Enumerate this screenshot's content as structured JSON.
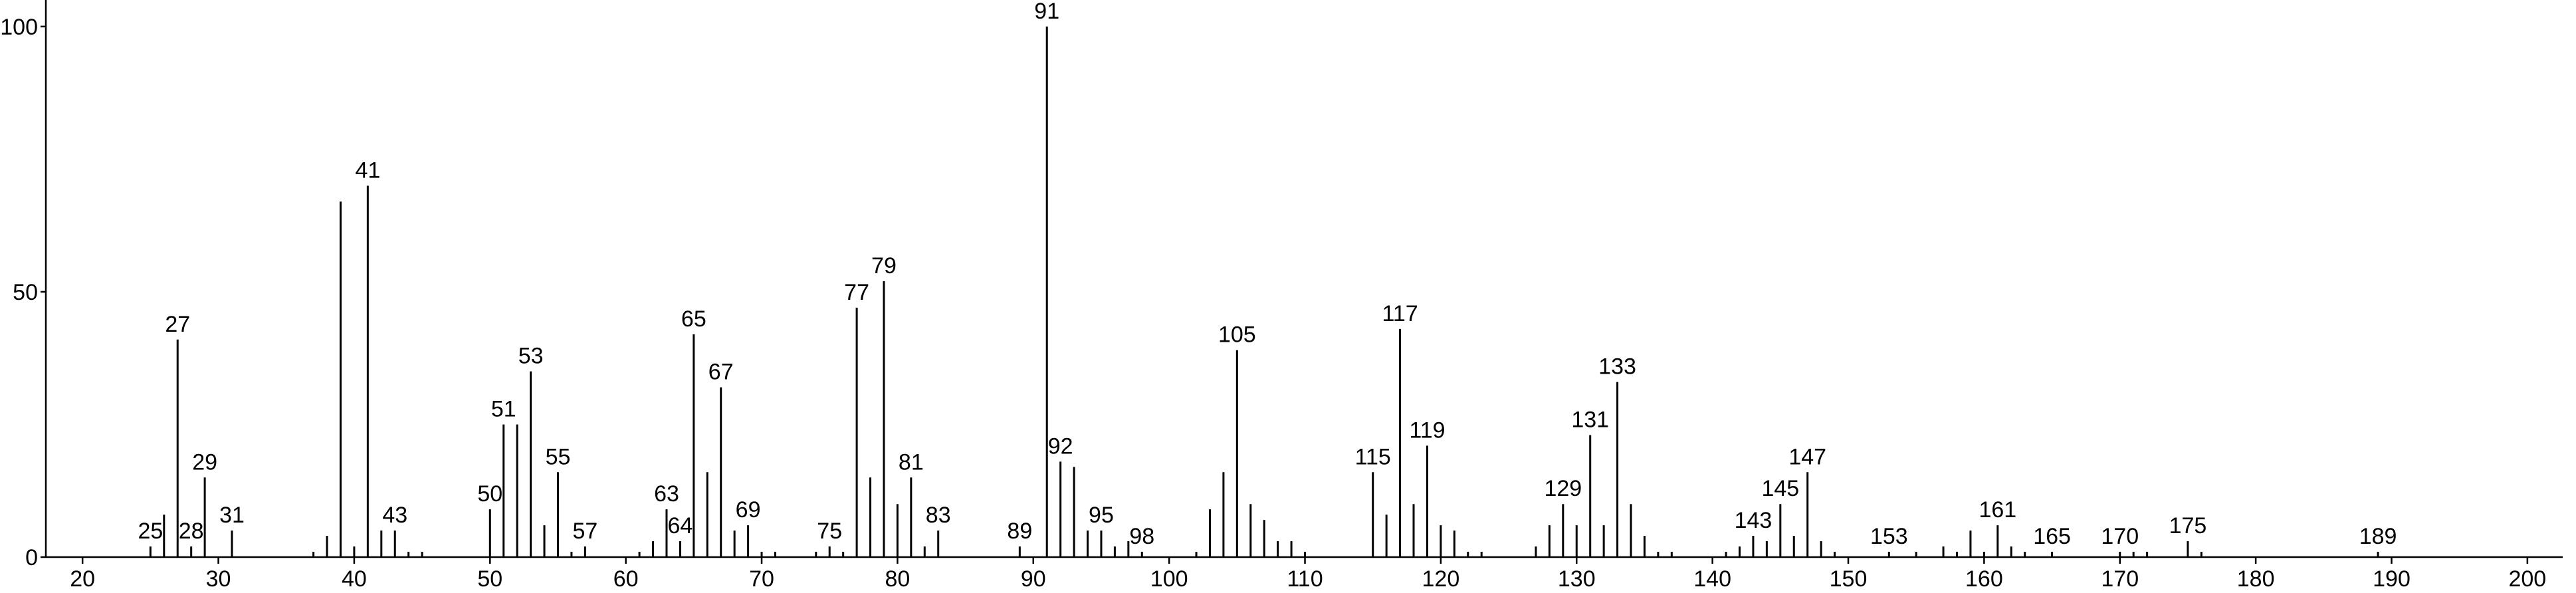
{
  "chart_data": {
    "type": "stick",
    "x": [
      25,
      26,
      27,
      28,
      29,
      31,
      37,
      38,
      39,
      40,
      41,
      42,
      43,
      44,
      45,
      50,
      51,
      52,
      53,
      54,
      55,
      56,
      57,
      61,
      62,
      63,
      64,
      65,
      66,
      67,
      68,
      69,
      70,
      71,
      74,
      75,
      76,
      77,
      78,
      79,
      80,
      81,
      82,
      83,
      89,
      91,
      92,
      93,
      94,
      95,
      96,
      97,
      98,
      102,
      103,
      104,
      105,
      106,
      107,
      108,
      109,
      110,
      115,
      116,
      117,
      118,
      119,
      120,
      121,
      122,
      123,
      127,
      128,
      129,
      130,
      131,
      132,
      133,
      134,
      135,
      136,
      137,
      141,
      142,
      143,
      144,
      145,
      146,
      147,
      148,
      149,
      153,
      155,
      157,
      158,
      159,
      160,
      161,
      162,
      163,
      165,
      170,
      171,
      172,
      175,
      176,
      189
    ],
    "values": [
      2,
      8,
      41,
      2,
      15,
      5,
      1,
      4,
      67,
      2,
      70,
      5,
      5,
      1,
      1,
      9,
      25,
      25,
      35,
      6,
      16,
      1,
      2,
      1,
      3,
      9,
      3,
      42,
      16,
      32,
      5,
      6,
      1,
      1,
      1,
      2,
      1,
      47,
      15,
      52,
      10,
      15,
      2,
      5,
      2,
      100,
      18,
      17,
      5,
      5,
      2,
      3,
      1,
      1,
      9,
      16,
      39,
      10,
      7,
      3,
      3,
      1,
      16,
      8,
      43,
      10,
      21,
      6,
      5,
      1,
      1,
      2,
      6,
      10,
      6,
      23,
      6,
      33,
      10,
      4,
      1,
      1,
      1,
      2,
      4,
      3,
      10,
      4,
      16,
      3,
      1,
      1,
      1,
      2,
      1,
      5,
      1,
      6,
      2,
      1,
      1,
      1,
      1,
      1,
      3,
      1,
      1
    ],
    "annotations": [
      25,
      27,
      28,
      29,
      31,
      41,
      43,
      50,
      51,
      53,
      55,
      57,
      63,
      64,
      65,
      67,
      69,
      75,
      77,
      79,
      81,
      83,
      89,
      91,
      92,
      95,
      98,
      105,
      115,
      117,
      119,
      129,
      131,
      133,
      143,
      145,
      147,
      153,
      161,
      165,
      170,
      175,
      189
    ],
    "color": "#000000",
    "xlim": [
      17.3,
      202.6
    ],
    "ylim": [
      0,
      105
    ],
    "xticks": [
      20,
      30,
      40,
      50,
      60,
      70,
      80,
      90,
      100,
      110,
      120,
      130,
      140,
      150,
      160,
      170,
      180,
      190,
      200
    ],
    "yticks": [
      0,
      50,
      100
    ]
  }
}
